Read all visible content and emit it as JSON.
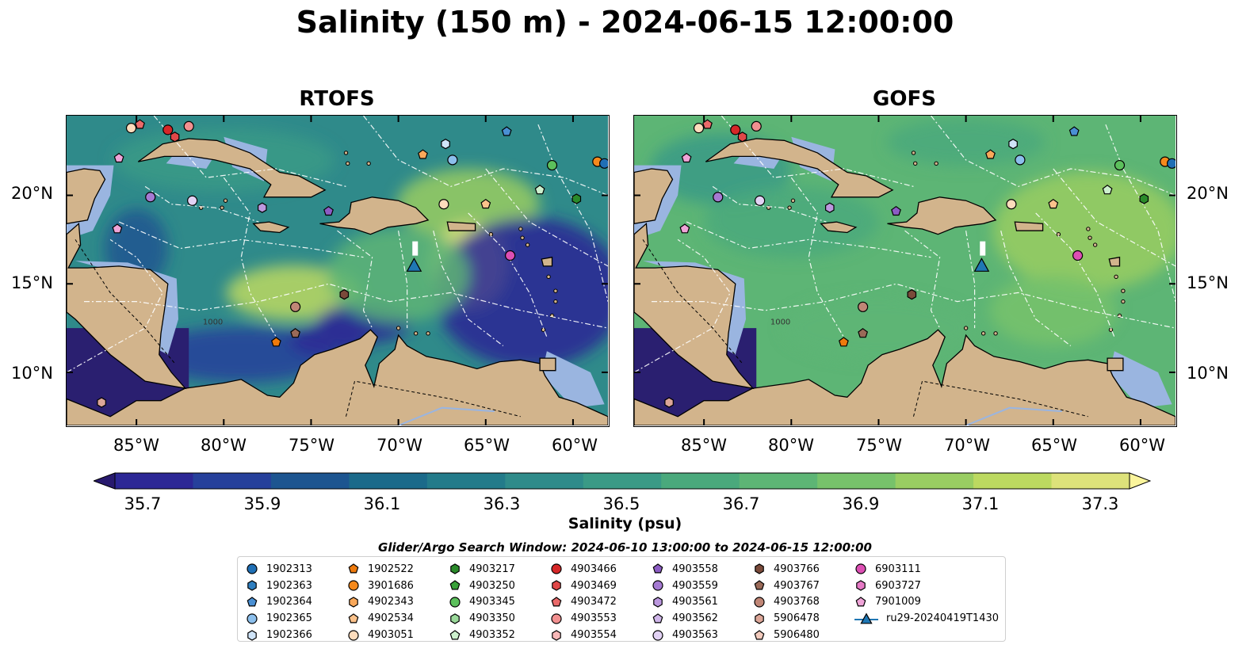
{
  "title": "Salinity (150 m) - 2024-06-15 12:00:00",
  "panels": [
    {
      "title": "RTOFS"
    },
    {
      "title": "GOFS"
    }
  ],
  "map": {
    "lon_range": [
      -89,
      -58
    ],
    "lat_range": [
      7,
      24.5
    ],
    "lon_ticks": [
      "85°W",
      "80°W",
      "75°W",
      "70°W",
      "65°W",
      "60°W"
    ],
    "lat_ticks": [
      "20°N",
      "15°N",
      "10°N"
    ],
    "contour_label": "1000",
    "land_color": "#d2b48c",
    "shelf_color": "#9ab5e0",
    "colors": {
      "water_mid": "#2f8a8a",
      "water_high": "#5db575",
      "water_low": "#263a8f",
      "deep_low": "#2a1f70"
    }
  },
  "colorbar": {
    "label": "Salinity (psu)",
    "ticks": [
      "35.7",
      "35.9",
      "36.1",
      "36.3",
      "36.5",
      "36.7",
      "36.9",
      "37.1",
      "37.3"
    ],
    "colors": [
      "#281a6e",
      "#2c2795",
      "#26409b",
      "#1d5590",
      "#1b6a8a",
      "#237b8a",
      "#2f8b8a",
      "#3a9a86",
      "#4aa97c",
      "#5db575",
      "#77c26b",
      "#99cd62",
      "#bcd960",
      "#dde27a",
      "#fbf59c"
    ]
  },
  "search_window": "Glider/Argo Search Window: 2024-06-10 13:00:00 to 2024-06-15 12:00:00",
  "legend": {
    "columns": [
      [
        {
          "label": "1902313",
          "shape": "circle",
          "color": "#1f6fb5"
        },
        {
          "label": "1902363",
          "shape": "hexagon",
          "color": "#2f7fc0"
        },
        {
          "label": "1902364",
          "shape": "pentagon",
          "color": "#4a90d4"
        },
        {
          "label": "1902365",
          "shape": "circle",
          "color": "#8cbfec"
        },
        {
          "label": "1902366",
          "shape": "hexagon",
          "color": "#cfe4f8"
        }
      ],
      [
        {
          "label": "1902522",
          "shape": "pentagon",
          "color": "#ee7a0d"
        },
        {
          "label": "3901686",
          "shape": "circle",
          "color": "#f5891c"
        },
        {
          "label": "4902343",
          "shape": "hexagon",
          "color": "#f9a85a"
        },
        {
          "label": "4902534",
          "shape": "pentagon",
          "color": "#fbc28b"
        },
        {
          "label": "4903051",
          "shape": "circle",
          "color": "#fddcbc"
        }
      ],
      [
        {
          "label": "4903217",
          "shape": "hexagon",
          "color": "#2a8a2a"
        },
        {
          "label": "4903250",
          "shape": "pentagon",
          "color": "#3aa13a"
        },
        {
          "label": "4903345",
          "shape": "circle",
          "color": "#5cc05c"
        },
        {
          "label": "4903350",
          "shape": "hexagon",
          "color": "#9ad99a"
        },
        {
          "label": "4903352",
          "shape": "pentagon",
          "color": "#cdf0cd"
        }
      ],
      [
        {
          "label": "4903466",
          "shape": "circle",
          "color": "#d62728"
        },
        {
          "label": "4903469",
          "shape": "hexagon",
          "color": "#e04848"
        },
        {
          "label": "4903472",
          "shape": "pentagon",
          "color": "#ea6a6a"
        },
        {
          "label": "4903553",
          "shape": "circle",
          "color": "#f29090"
        },
        {
          "label": "4903554",
          "shape": "hexagon",
          "color": "#f8b8b8"
        }
      ],
      [
        {
          "label": "4903558",
          "shape": "pentagon",
          "color": "#8c5cc4"
        },
        {
          "label": "4903559",
          "shape": "circle",
          "color": "#a57ad2"
        },
        {
          "label": "4903561",
          "shape": "hexagon",
          "color": "#bc98df"
        },
        {
          "label": "4903562",
          "shape": "pentagon",
          "color": "#d0b6ea"
        },
        {
          "label": "4903563",
          "shape": "circle",
          "color": "#e2d2f4"
        }
      ],
      [
        {
          "label": "4903766",
          "shape": "hexagon",
          "color": "#7a4a3a"
        },
        {
          "label": "4903767",
          "shape": "pentagon",
          "color": "#9a6a58"
        },
        {
          "label": "4903768",
          "shape": "circle",
          "color": "#c08676"
        },
        {
          "label": "5906478",
          "shape": "hexagon",
          "color": "#dca698"
        },
        {
          "label": "5906480",
          "shape": "pentagon",
          "color": "#f3cbbd"
        }
      ],
      [
        {
          "label": "6903111",
          "shape": "circle",
          "color": "#dd4fb4"
        },
        {
          "label": "6903727",
          "shape": "hexagon",
          "color": "#e67ac6"
        },
        {
          "label": "7901009",
          "shape": "pentagon",
          "color": "#efa4d8"
        },
        {
          "label": "ru29-20240419T1430",
          "shape": "glider",
          "color": "#1f77b4"
        }
      ]
    ]
  },
  "markers": [
    {
      "lon": -85.3,
      "lat": 23.8,
      "shape": "circle",
      "color": "#fddcbc"
    },
    {
      "lon": -84.8,
      "lat": 24.0,
      "shape": "pentagon",
      "color": "#ea6a6a"
    },
    {
      "lon": -83.2,
      "lat": 23.7,
      "shape": "circle",
      "color": "#d62728"
    },
    {
      "lon": -82.8,
      "lat": 23.3,
      "shape": "hexagon",
      "color": "#e04848"
    },
    {
      "lon": -82.0,
      "lat": 23.9,
      "shape": "circle",
      "color": "#f29090"
    },
    {
      "lon": -86.0,
      "lat": 22.1,
      "shape": "pentagon",
      "color": "#efa4d8"
    },
    {
      "lon": -84.2,
      "lat": 19.9,
      "shape": "circle",
      "color": "#a57ad2"
    },
    {
      "lon": -81.8,
      "lat": 19.7,
      "shape": "circle",
      "color": "#e2d2f4"
    },
    {
      "lon": -86.1,
      "lat": 18.1,
      "shape": "pentagon",
      "color": "#efa4d8"
    },
    {
      "lon": -77.8,
      "lat": 19.3,
      "shape": "hexagon",
      "color": "#bc98df"
    },
    {
      "lon": -74.0,
      "lat": 19.1,
      "shape": "pentagon",
      "color": "#8c5cc4"
    },
    {
      "lon": -68.6,
      "lat": 22.3,
      "shape": "pentagon",
      "color": "#f9a85a"
    },
    {
      "lon": -67.3,
      "lat": 22.9,
      "shape": "hexagon",
      "color": "#cfe4f8"
    },
    {
      "lon": -66.9,
      "lat": 22.0,
      "shape": "circle",
      "color": "#8cbfec"
    },
    {
      "lon": -63.8,
      "lat": 23.6,
      "shape": "pentagon",
      "color": "#4a90d4"
    },
    {
      "lon": -61.2,
      "lat": 21.7,
      "shape": "circle",
      "color": "#5cc05c"
    },
    {
      "lon": -58.6,
      "lat": 21.9,
      "shape": "circle",
      "color": "#f5891c"
    },
    {
      "lon": -58.2,
      "lat": 21.8,
      "shape": "circle",
      "color": "#1f6fb5"
    },
    {
      "lon": -61.9,
      "lat": 20.3,
      "shape": "pentagon",
      "color": "#cdf0cd"
    },
    {
      "lon": -59.8,
      "lat": 19.8,
      "shape": "hexagon",
      "color": "#2a8a2a"
    },
    {
      "lon": -67.4,
      "lat": 19.5,
      "shape": "circle",
      "color": "#fddcbc"
    },
    {
      "lon": -65.0,
      "lat": 19.5,
      "shape": "pentagon",
      "color": "#fbc28b"
    },
    {
      "lon": -63.6,
      "lat": 16.6,
      "shape": "circle",
      "color": "#dd4fb4"
    },
    {
      "lon": -75.9,
      "lat": 13.7,
      "shape": "circle",
      "color": "#c08676"
    },
    {
      "lon": -73.1,
      "lat": 14.4,
      "shape": "hexagon",
      "color": "#7a4a3a"
    },
    {
      "lon": -75.9,
      "lat": 12.2,
      "shape": "pentagon",
      "color": "#9a6a58"
    },
    {
      "lon": -77.0,
      "lat": 11.7,
      "shape": "pentagon",
      "color": "#ee7a0d"
    },
    {
      "lon": -87.0,
      "lat": 8.3,
      "shape": "hexagon",
      "color": "#dca698"
    }
  ],
  "glider": {
    "lon": -69.1,
    "lat": 16.0,
    "color": "#1f77b4"
  }
}
